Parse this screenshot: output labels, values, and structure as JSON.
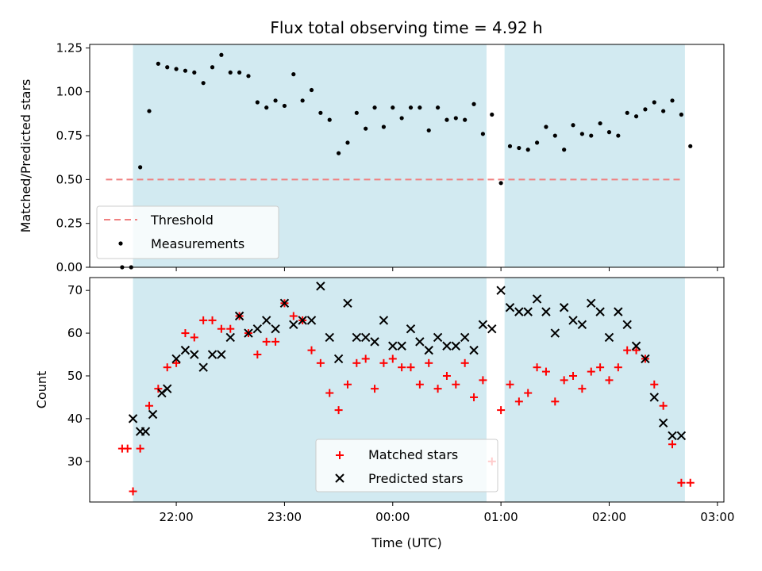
{
  "title": "Flux total observing time = 4.92 h",
  "colors": {
    "shade": "#add8e6",
    "threshold": "#f08080",
    "measurement": "#000000",
    "matched": "#ff0000",
    "predicted": "#000000"
  },
  "chart_data": [
    {
      "type": "scatter",
      "panel": "top",
      "ylabel": "Matched/Predicted stars",
      "xlabel": "",
      "ylim": [
        0,
        1.27
      ],
      "yticks": [
        "0.00",
        "0.25",
        "0.50",
        "0.75",
        "1.00",
        "1.25"
      ],
      "legend": [
        "Threshold",
        "Measurements"
      ],
      "legend_position": "lower-left",
      "threshold": 0.5,
      "shaded_intervals": [
        [
          "21:36",
          "00:52"
        ],
        [
          "01:02",
          "02:42"
        ]
      ],
      "series": [
        {
          "name": "Measurements",
          "x": [
            "21:30",
            "21:35",
            "21:40",
            "21:45",
            "21:50",
            "21:55",
            "22:00",
            "22:05",
            "22:10",
            "22:15",
            "22:20",
            "22:25",
            "22:30",
            "22:35",
            "22:40",
            "22:45",
            "22:50",
            "22:55",
            "23:00",
            "23:05",
            "23:10",
            "23:15",
            "23:20",
            "23:25",
            "23:30",
            "23:35",
            "23:40",
            "23:45",
            "23:50",
            "23:55",
            "00:00",
            "00:05",
            "00:10",
            "00:15",
            "00:20",
            "00:25",
            "00:30",
            "00:35",
            "00:40",
            "00:45",
            "00:50",
            "00:55",
            "01:00",
            "01:05",
            "01:10",
            "01:15",
            "01:20",
            "01:25",
            "01:30",
            "01:35",
            "01:40",
            "01:45",
            "01:50",
            "01:55",
            "02:00",
            "02:05",
            "02:10",
            "02:15",
            "02:20",
            "02:25",
            "02:30",
            "02:35",
            "02:40",
            "02:45"
          ],
          "y": [
            0.0,
            0.0,
            0.57,
            0.89,
            1.16,
            1.14,
            1.13,
            1.12,
            1.11,
            1.05,
            1.14,
            1.21,
            1.11,
            1.11,
            1.09,
            0.94,
            0.91,
            0.95,
            0.92,
            1.1,
            0.95,
            1.01,
            0.88,
            0.84,
            0.65,
            0.71,
            0.88,
            0.79,
            0.91,
            0.8,
            0.91,
            0.85,
            0.91,
            0.91,
            0.78,
            0.91,
            0.84,
            0.85,
            0.84,
            0.93,
            0.76,
            0.87,
            0.48,
            0.69,
            0.68,
            0.67,
            0.71,
            0.8,
            0.75,
            0.67,
            0.81,
            0.76,
            0.75,
            0.82,
            0.77,
            0.75,
            0.88,
            0.86,
            0.9,
            0.94,
            0.89,
            0.95,
            0.87,
            0.69
          ]
        }
      ]
    },
    {
      "type": "scatter",
      "panel": "bottom",
      "xlabel": "Time (UTC)",
      "ylabel": "Count",
      "ylim": [
        20.5,
        73
      ],
      "yticks": [
        "30",
        "40",
        "50",
        "60",
        "70"
      ],
      "xticks": [
        "22:00",
        "23:00",
        "00:00",
        "01:00",
        "02:00",
        "03:00"
      ],
      "legend": [
        "Matched stars",
        "Predicted stars"
      ],
      "legend_position": "lower-center",
      "series": [
        {
          "name": "Matched stars",
          "x": [
            "21:30",
            "21:33",
            "21:36",
            "21:40",
            "21:45",
            "21:50",
            "21:55",
            "22:00",
            "22:05",
            "22:10",
            "22:15",
            "22:20",
            "22:25",
            "22:30",
            "22:35",
            "22:40",
            "22:45",
            "22:50",
            "22:55",
            "23:00",
            "23:05",
            "23:10",
            "23:15",
            "23:20",
            "23:25",
            "23:30",
            "23:35",
            "23:40",
            "23:45",
            "23:50",
            "23:55",
            "00:00",
            "00:05",
            "00:10",
            "00:15",
            "00:20",
            "00:25",
            "00:30",
            "00:35",
            "00:40",
            "00:45",
            "00:50",
            "00:55",
            "01:00",
            "01:05",
            "01:10",
            "01:15",
            "01:20",
            "01:25",
            "01:30",
            "01:35",
            "01:40",
            "01:45",
            "01:50",
            "01:55",
            "02:00",
            "02:05",
            "02:10",
            "02:15",
            "02:20",
            "02:25",
            "02:30",
            "02:35",
            "02:40",
            "02:45"
          ],
          "y": [
            33,
            33,
            23,
            33,
            43,
            47,
            52,
            53,
            60,
            59,
            63,
            63,
            61,
            61,
            64,
            60,
            55,
            58,
            58,
            67,
            64,
            63,
            56,
            53,
            46,
            42,
            48,
            53,
            54,
            47,
            53,
            54,
            52,
            52,
            48,
            53,
            47,
            50,
            48,
            53,
            45,
            49,
            30,
            42,
            48,
            44,
            46,
            52,
            51,
            44,
            49,
            50,
            47,
            51,
            52,
            49,
            52,
            56,
            56,
            54,
            48,
            43,
            34,
            25,
            25
          ]
        },
        {
          "name": "Predicted stars",
          "x": [
            "21:36",
            "21:40",
            "21:43",
            "21:47",
            "21:52",
            "21:55",
            "22:00",
            "22:05",
            "22:10",
            "22:15",
            "22:20",
            "22:25",
            "22:30",
            "22:35",
            "22:40",
            "22:45",
            "22:50",
            "22:55",
            "23:00",
            "23:05",
            "23:10",
            "23:15",
            "23:20",
            "23:25",
            "23:30",
            "23:35",
            "23:40",
            "23:45",
            "23:50",
            "23:55",
            "00:00",
            "00:05",
            "00:10",
            "00:15",
            "00:20",
            "00:25",
            "00:30",
            "00:35",
            "00:40",
            "00:45",
            "00:50",
            "00:55",
            "01:00",
            "01:05",
            "01:10",
            "01:15",
            "01:20",
            "01:25",
            "01:30",
            "01:35",
            "01:40",
            "01:45",
            "01:50",
            "01:55",
            "02:00",
            "02:05",
            "02:10",
            "02:15",
            "02:20",
            "02:25",
            "02:30",
            "02:35",
            "02:40"
          ],
          "y": [
            40,
            37,
            37,
            41,
            46,
            47,
            54,
            56,
            55,
            52,
            55,
            55,
            59,
            64,
            60,
            61,
            63,
            61,
            67,
            62,
            63,
            63,
            71,
            59,
            54,
            67,
            59,
            59,
            58,
            63,
            57,
            57,
            61,
            58,
            56,
            59,
            57,
            57,
            59,
            56,
            62,
            61,
            70,
            66,
            65,
            65,
            68,
            65,
            60,
            66,
            63,
            62,
            67,
            65,
            59,
            65,
            62,
            57,
            54,
            45,
            39,
            36,
            36
          ]
        }
      ]
    }
  ]
}
